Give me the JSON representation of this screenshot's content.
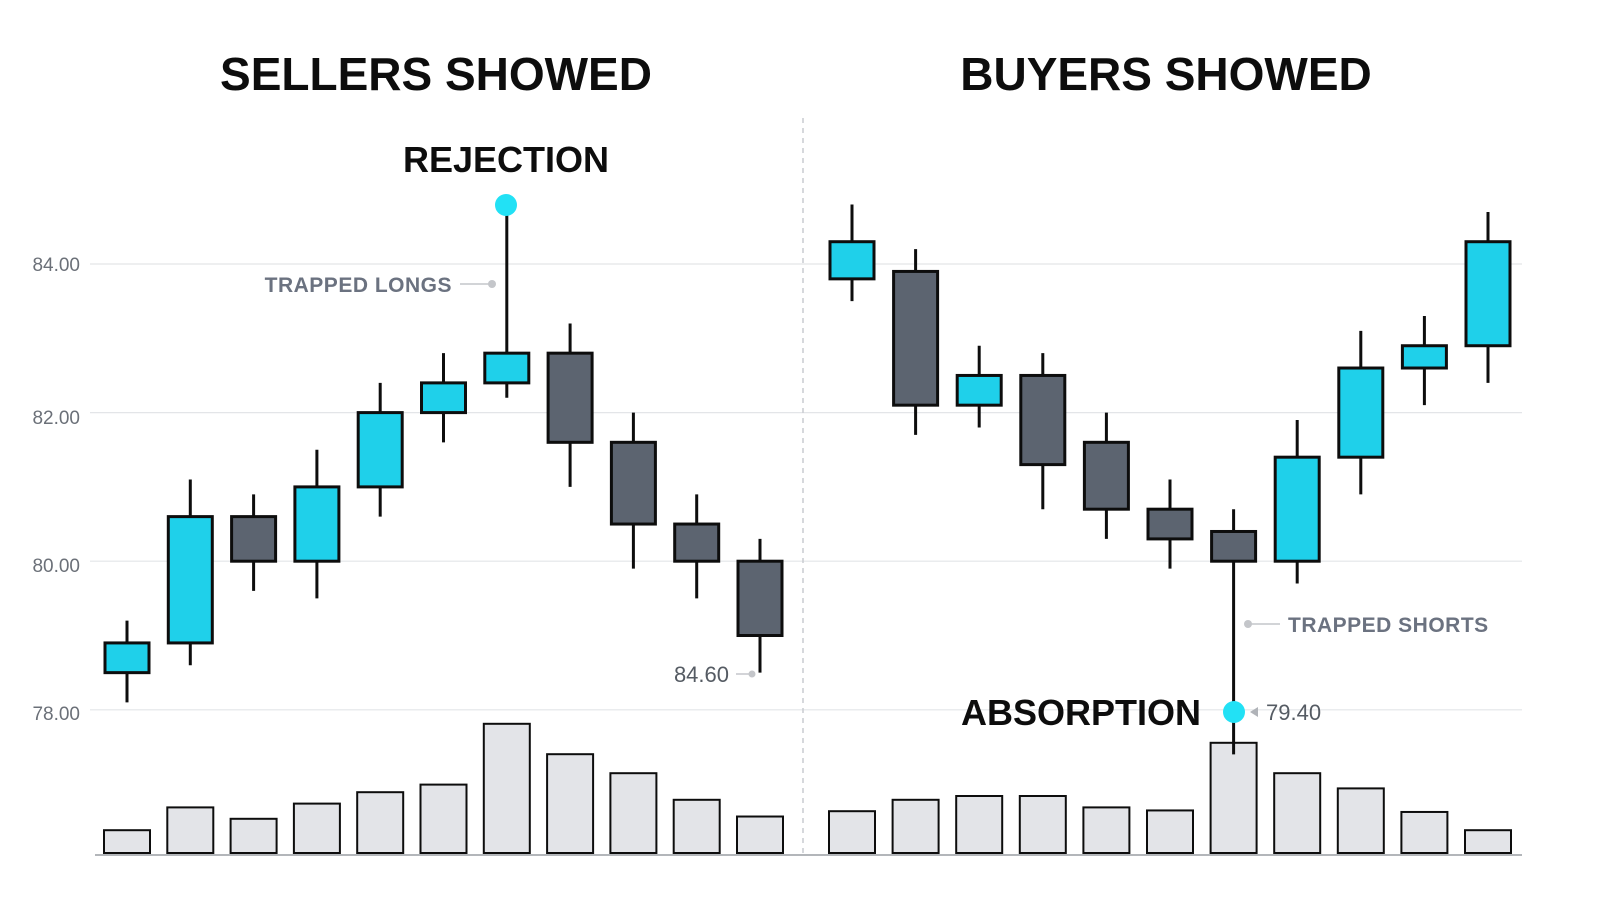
{
  "chart_data": [
    {
      "type": "candlestick",
      "title": "SELLERS SHOWED",
      "y_ticks": [
        "84.00",
        "82.00",
        "80.00",
        "78.00"
      ],
      "y_tick_values": [
        84,
        82,
        80,
        78
      ],
      "ylim": [
        77.4,
        85.4
      ],
      "grid": true,
      "candles": [
        {
          "open": 78.5,
          "high": 79.2,
          "low": 78.1,
          "close": 78.9,
          "volume": 3
        },
        {
          "open": 78.9,
          "high": 81.1,
          "low": 78.6,
          "close": 80.6,
          "volume": 6
        },
        {
          "open": 80.6,
          "high": 80.9,
          "low": 79.6,
          "close": 80.0,
          "volume": 4.5
        },
        {
          "open": 80.0,
          "high": 81.5,
          "low": 79.5,
          "close": 81.0,
          "volume": 6.5
        },
        {
          "open": 81.0,
          "high": 82.4,
          "low": 80.6,
          "close": 82.0,
          "volume": 8
        },
        {
          "open": 82.0,
          "high": 82.8,
          "low": 81.6,
          "close": 82.4,
          "volume": 9
        },
        {
          "open": 82.4,
          "high": 84.8,
          "low": 82.2,
          "close": 82.8,
          "volume": 17
        },
        {
          "open": 82.8,
          "high": 83.2,
          "low": 81.0,
          "close": 81.6,
          "volume": 13
        },
        {
          "open": 81.6,
          "high": 82.0,
          "low": 79.9,
          "close": 80.5,
          "volume": 10.5
        },
        {
          "open": 80.5,
          "high": 80.9,
          "low": 79.5,
          "close": 80.0,
          "volume": 7
        },
        {
          "open": 80.0,
          "high": 80.3,
          "low": 78.5,
          "close": 79.0,
          "volume": 4.8
        }
      ],
      "annotations": {
        "rejection": "REJECTION",
        "trapped_longs": "TRAPPED LONGS",
        "last_price": "84.60"
      }
    },
    {
      "type": "candlestick",
      "title": "BUYERS SHOWED",
      "candles": [
        {
          "open": 83.8,
          "high": 84.8,
          "low": 83.5,
          "close": 84.3,
          "volume": 5.5
        },
        {
          "open": 83.9,
          "high": 84.2,
          "low": 81.7,
          "close": 82.1,
          "volume": 7
        },
        {
          "open": 82.1,
          "high": 82.9,
          "low": 81.8,
          "close": 82.5,
          "volume": 7.5
        },
        {
          "open": 82.5,
          "high": 82.8,
          "low": 80.7,
          "close": 81.3,
          "volume": 7.5
        },
        {
          "open": 81.6,
          "high": 82.0,
          "low": 80.3,
          "close": 80.7,
          "volume": 6
        },
        {
          "open": 80.7,
          "high": 81.1,
          "low": 79.9,
          "close": 80.3,
          "volume": 5.6
        },
        {
          "open": 80.4,
          "high": 80.7,
          "low": 77.4,
          "close": 80.0,
          "volume": 14.5
        },
        {
          "open": 80.0,
          "high": 81.9,
          "low": 79.7,
          "close": 81.4,
          "volume": 10.5
        },
        {
          "open": 81.4,
          "high": 83.1,
          "low": 80.9,
          "close": 82.6,
          "volume": 8.5
        },
        {
          "open": 82.6,
          "high": 83.3,
          "low": 82.1,
          "close": 82.9,
          "volume": 5.4
        },
        {
          "open": 82.9,
          "high": 84.7,
          "low": 82.4,
          "close": 84.3,
          "volume": 3
        }
      ],
      "annotations": {
        "absorption": "ABSORPTION",
        "trapped_shorts": "TRAPPED SHORTS",
        "absorption_price": "79.40"
      }
    }
  ],
  "colors": {
    "bull": "#1fd0ea",
    "bear": "#5c6470",
    "outline": "#0d0d0d",
    "volume_fill": "#e3e4e8",
    "grid": "#e3e5e8",
    "marker": "#22e1f5",
    "callout": "#c4c6ca"
  }
}
